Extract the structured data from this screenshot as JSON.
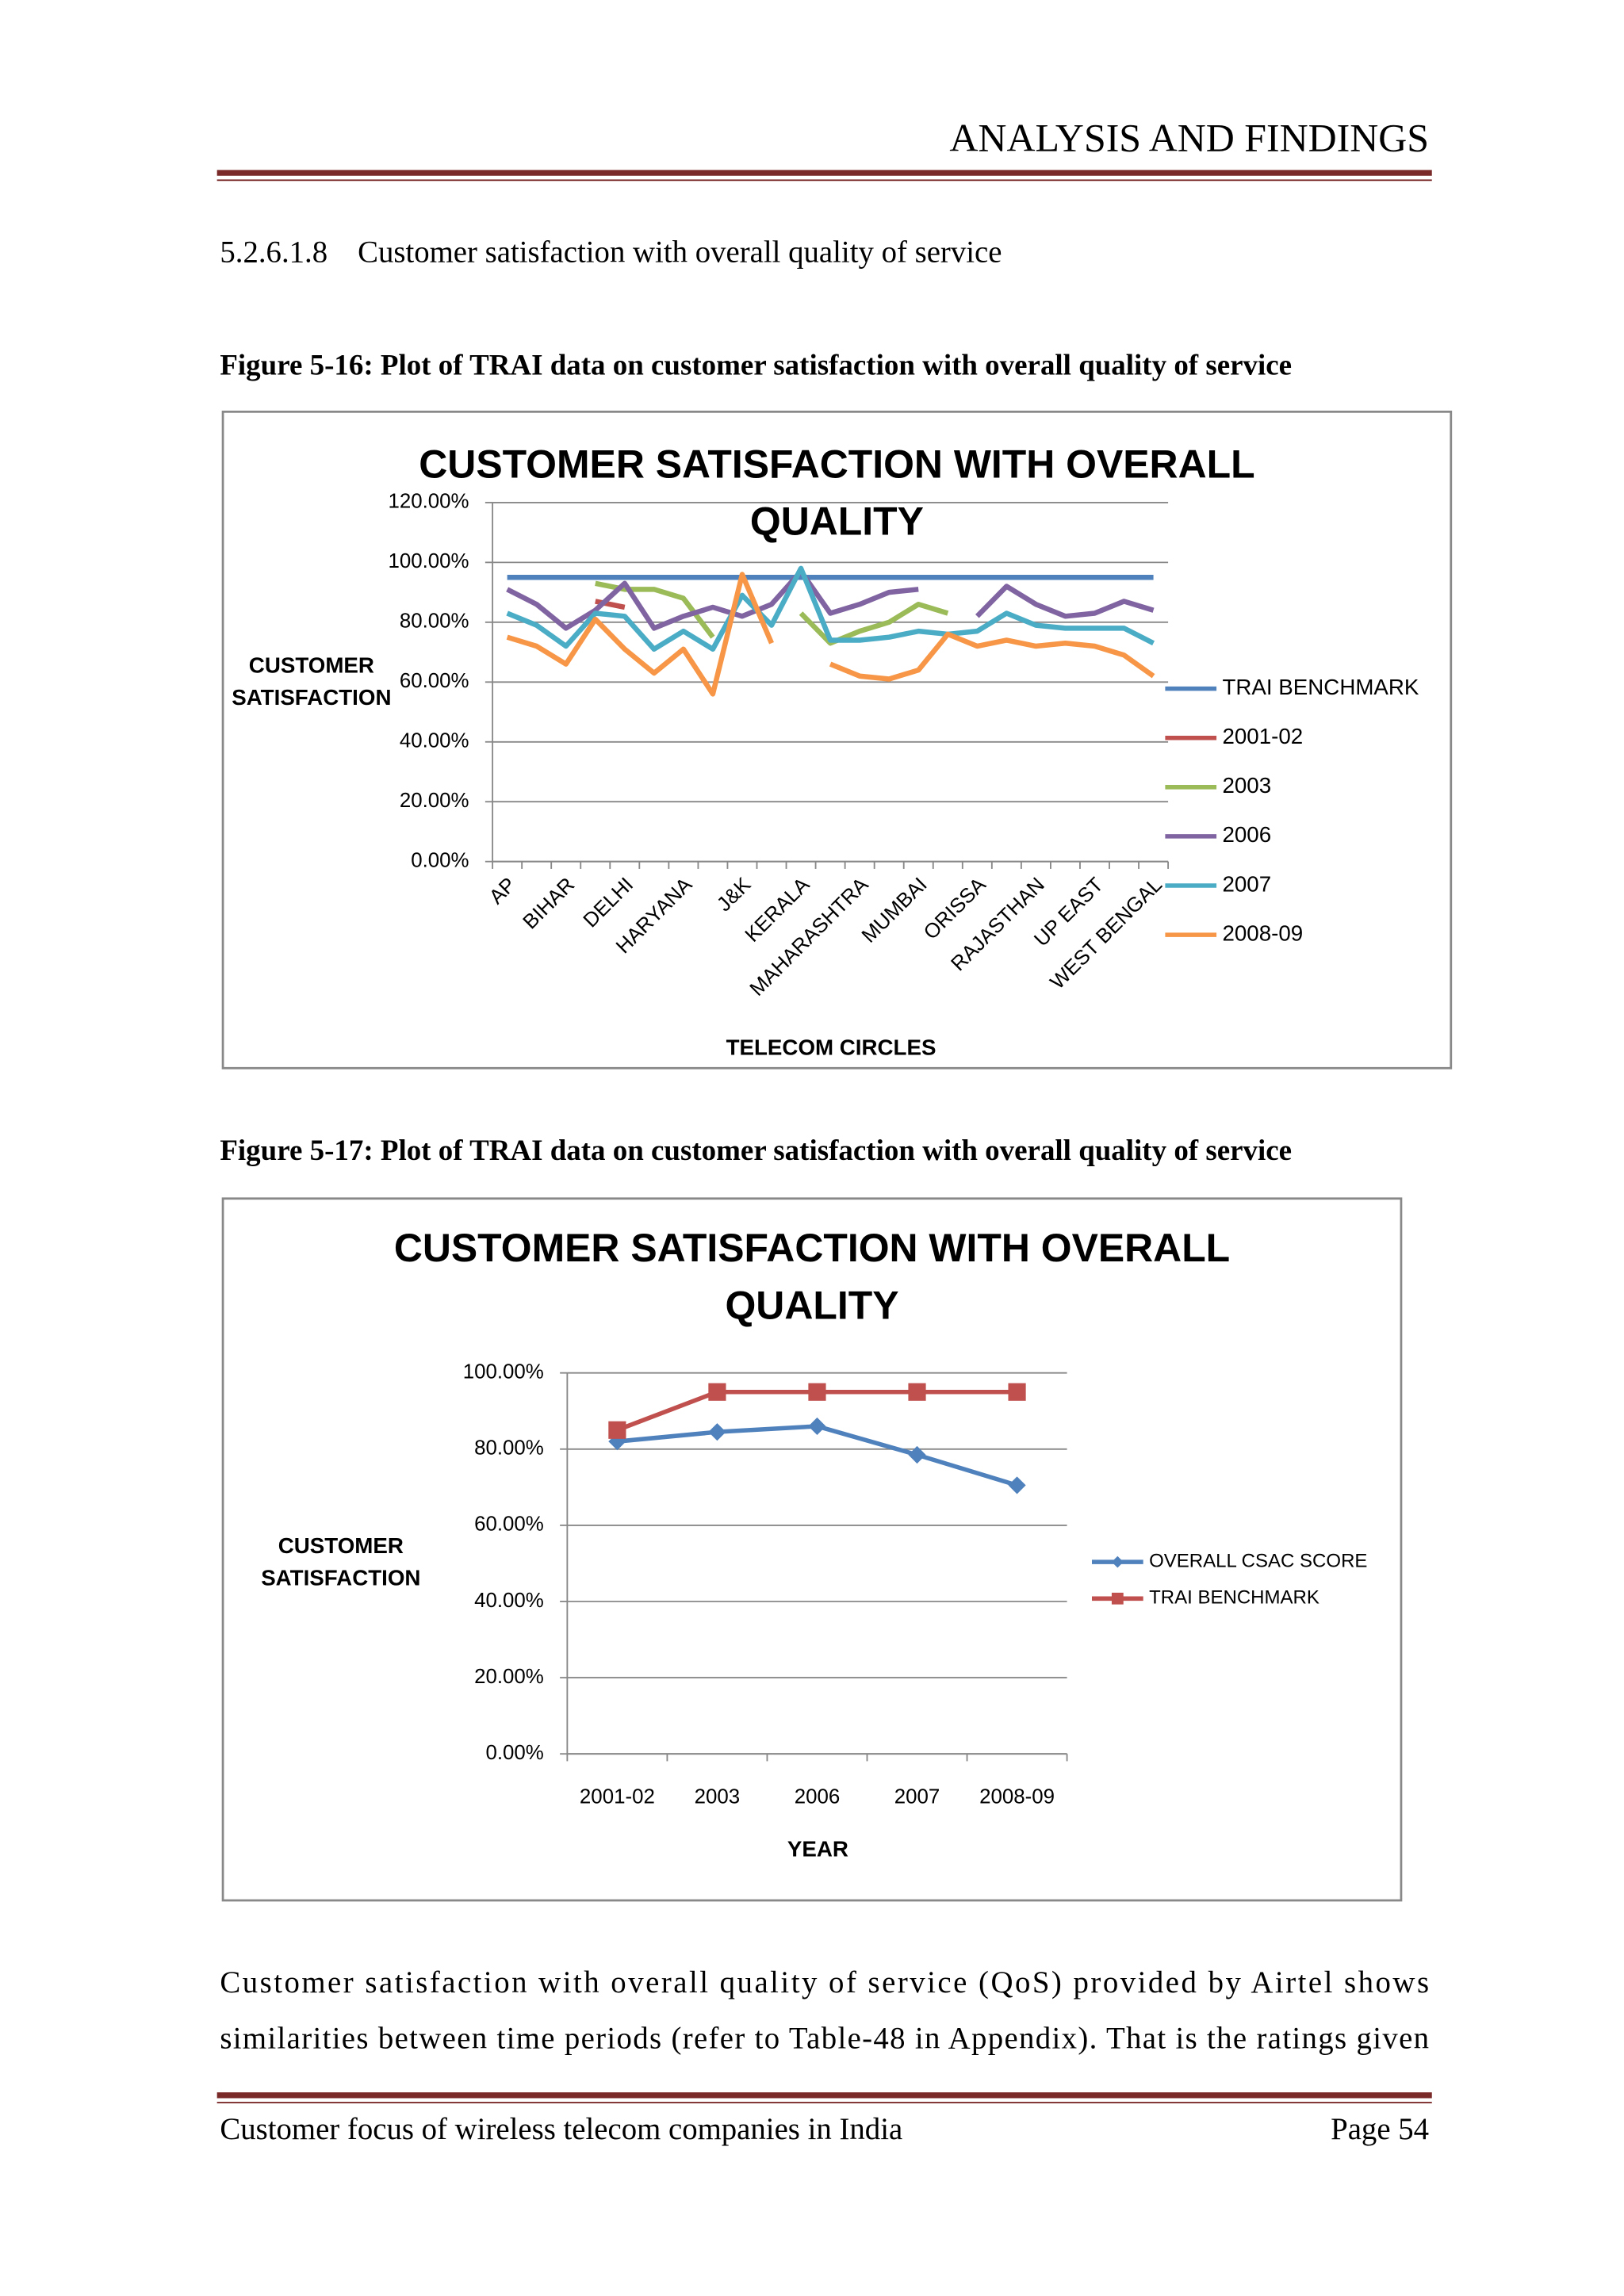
{
  "header": {
    "title": "ANALYSIS AND FINDINGS"
  },
  "section": {
    "number": "5.2.6.1.8",
    "title": "Customer satisfaction with overall quality of service"
  },
  "figure_captions": [
    "Figure 5-16: Plot of TRAI data on customer satisfaction with overall quality of service",
    "Figure 5-17: Plot of TRAI data on customer satisfaction with overall quality of service"
  ],
  "chart_data": [
    {
      "type": "line",
      "title": "CUSTOMER SATISFACTION WITH OVERALL QUALITY",
      "y_label": "CUSTOMER SATISFACTION",
      "x_label": "TELECOM CIRCLES",
      "categories": [
        "AP",
        null,
        "BIHAR",
        null,
        "DELHI",
        null,
        "HARYANA",
        null,
        "J&K",
        null,
        "KERALA",
        null,
        "MAHARASHTRA",
        null,
        "MUMBAI",
        null,
        "ORISSA",
        null,
        "RAJASTHAN",
        null,
        "UP EAST",
        null,
        "WEST BENGAL"
      ],
      "ylim": [
        0,
        120
      ],
      "yticks": [
        {
          "value": 0,
          "label": "0.00%"
        },
        {
          "value": 20,
          "label": "20.00%"
        },
        {
          "value": 40,
          "label": "40.00%"
        },
        {
          "value": 60,
          "label": "60.00%"
        },
        {
          "value": 80,
          "label": "80.00%"
        },
        {
          "value": 100,
          "label": "100.00%"
        },
        {
          "value": 120,
          "label": "120.00%"
        }
      ],
      "grid": true,
      "legend": "right",
      "series": [
        {
          "name": "TRAI BENCHMARK",
          "color": "#4f81bd",
          "values": [
            95,
            95,
            95,
            95,
            95,
            95,
            95,
            95,
            95,
            95,
            95,
            95,
            95,
            95,
            95,
            95,
            95,
            95,
            95,
            95,
            95,
            95,
            95
          ]
        },
        {
          "name": "2001-02",
          "color": "#c0504d",
          "values": [
            null,
            null,
            null,
            87,
            85,
            null,
            null,
            null,
            null,
            null,
            null,
            null,
            null,
            null,
            null,
            null,
            null,
            null,
            null,
            null,
            null,
            null,
            null
          ]
        },
        {
          "name": "2003",
          "color": "#9bbb59",
          "values": [
            null,
            null,
            null,
            93,
            91,
            91,
            88,
            75,
            null,
            null,
            83,
            73,
            77,
            80,
            86,
            83,
            null,
            null,
            null,
            null,
            null,
            null,
            null
          ]
        },
        {
          "name": "2006",
          "color": "#8064a2",
          "values": [
            91,
            86,
            78,
            84,
            93,
            78,
            82,
            85,
            82,
            86,
            97,
            83,
            86,
            90,
            91,
            null,
            82,
            92,
            86,
            82,
            83,
            87,
            84
          ]
        },
        {
          "name": "2007",
          "color": "#4bacc6",
          "values": [
            83,
            79,
            72,
            83,
            82,
            71,
            77,
            71,
            89,
            79,
            98,
            74,
            74,
            75,
            77,
            76,
            77,
            83,
            79,
            78,
            78,
            78,
            73
          ]
        },
        {
          "name": "2008-09",
          "color": "#f79646",
          "values": [
            75,
            72,
            66,
            81,
            71,
            63,
            71,
            56,
            96,
            73,
            null,
            66,
            62,
            61,
            64,
            76,
            72,
            74,
            72,
            73,
            72,
            69,
            62
          ]
        }
      ]
    },
    {
      "type": "line",
      "title": "CUSTOMER SATISFACTION WITH OVERALL QUALITY",
      "y_label": "CUSTOMER SATISFACTION",
      "x_label": "YEAR",
      "categories": [
        "2001-02",
        "2003",
        "2006",
        "2007",
        "2008-09"
      ],
      "ylim": [
        0,
        100
      ],
      "yticks": [
        {
          "value": 0,
          "label": "0.00%"
        },
        {
          "value": 20,
          "label": "20.00%"
        },
        {
          "value": 40,
          "label": "40.00%"
        },
        {
          "value": 60,
          "label": "60.00%"
        },
        {
          "value": 80,
          "label": "80.00%"
        },
        {
          "value": 100,
          "label": "100.00%"
        }
      ],
      "grid": true,
      "legend": "right",
      "markers": true,
      "series": [
        {
          "name": "OVERALL CSAC SCORE",
          "color": "#4f81bd",
          "marker": "diamond",
          "values": [
            82,
            84.5,
            86,
            78.5,
            70.5
          ]
        },
        {
          "name": "TRAI BENCHMARK",
          "color": "#c0504d",
          "marker": "square",
          "values": [
            85,
            95,
            95,
            95,
            95
          ]
        }
      ]
    }
  ],
  "paragraph": [
    "Customer satisfaction with overall quality of service (QoS) provided by Airtel shows",
    "similarities between time periods (refer to Table-48 in Appendix). That is the ratings given"
  ],
  "footer": {
    "left": "Customer focus of wireless telecom companies in India",
    "right": "Page 54"
  }
}
